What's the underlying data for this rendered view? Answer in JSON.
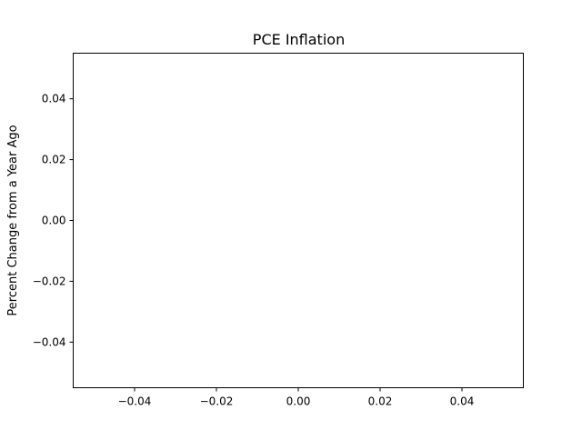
{
  "chart_data": {
    "type": "line",
    "title": "PCE Inflation",
    "xlabel": "",
    "ylabel": "Percent Change from a Year Ago",
    "xlim": [
      -0.055,
      0.055
    ],
    "ylim": [
      -0.055,
      0.055
    ],
    "xticks": [
      -0.04,
      -0.02,
      0.0,
      0.02,
      0.04
    ],
    "xtick_labels": [
      "−0.04",
      "−0.02",
      "0.00",
      "0.02",
      "0.04"
    ],
    "yticks": [
      0.04,
      0.02,
      0.0,
      -0.02,
      -0.04
    ],
    "ytick_labels": [
      "0.04",
      "0.02",
      "0.00",
      "−0.02",
      "−0.04"
    ],
    "series": [],
    "grid": false,
    "legend": false
  }
}
